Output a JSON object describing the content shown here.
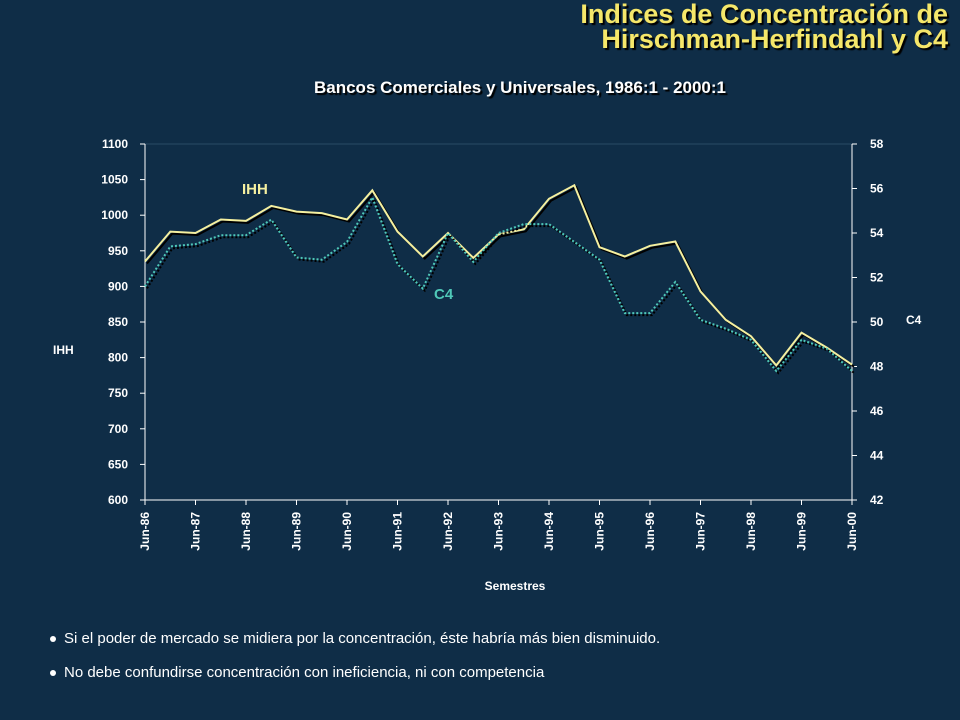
{
  "title_line1": "Indices de Concentración de",
  "title_line2": "Hirschman-Herfindahl y C4",
  "subtitle": "Bancos Comerciales y Universales, 1986:1 - 2000:1",
  "bullets": [
    "Si el poder de mercado se midiera por la concentración, éste habría más bien disminuido.",
    "No debe confundirse concentración con ineficiencia, ni con competencia"
  ],
  "chart_data": {
    "type": "line",
    "title": "Bancos Comerciales y Universales, 1986:1 - 2000:1",
    "xlabel": "Semestres",
    "ylabel_left": "IHH",
    "ylabel_right": "C4",
    "ylim_left": [
      600,
      1100
    ],
    "ylim_right": [
      42,
      58
    ],
    "yticks_left": [
      600,
      650,
      700,
      750,
      800,
      850,
      900,
      950,
      1000,
      1050,
      1100
    ],
    "yticks_right": [
      42,
      44,
      46,
      48,
      50,
      52,
      54,
      56,
      58
    ],
    "x_tick_labels": [
      "Jun-86",
      "Jun-87",
      "Jun-88",
      "Jun-89",
      "Jun-90",
      "Jun-91",
      "Jun-92",
      "Jun-93",
      "Jun-94",
      "Jun-95",
      "Jun-96",
      "Jun-97",
      "Jun-98",
      "Jun-99",
      "Jun-00"
    ],
    "series": [
      {
        "name": "IHH",
        "axis": "left",
        "color": "#f5f0a0",
        "style": "solid",
        "values": [
          935,
          977,
          975,
          994,
          992,
          1013,
          1005,
          1003,
          994,
          1035,
          977,
          942,
          975,
          940,
          973,
          980,
          1023,
          1042,
          955,
          942,
          957,
          963,
          893,
          853,
          830,
          789,
          835,
          814,
          790
        ]
      },
      {
        "name": "C4",
        "axis": "right",
        "color": "#4fc8b8",
        "style": "dotted",
        "values": [
          51.6,
          53.4,
          53.5,
          53.9,
          53.9,
          54.6,
          52.9,
          52.8,
          53.6,
          55.6,
          52.6,
          51.5,
          54.0,
          52.7,
          54.0,
          54.4,
          54.4,
          53.6,
          52.8,
          50.4,
          50.4,
          51.8,
          50.1,
          49.7,
          49.2,
          47.8,
          49.2,
          48.8,
          47.8
        ]
      }
    ],
    "grid": false,
    "legend": "inline labels"
  }
}
